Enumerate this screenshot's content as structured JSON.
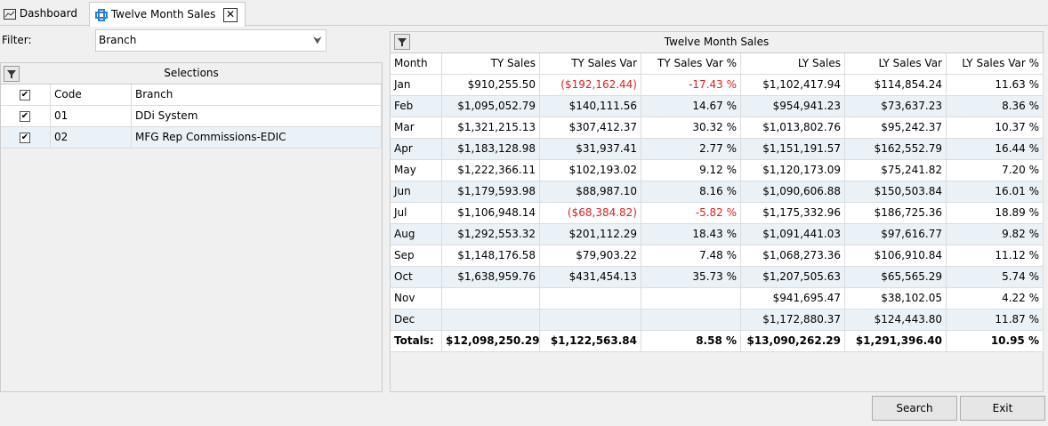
{
  "tabs": [
    "Dashboard",
    "Twelve Month Sales"
  ],
  "filter": {
    "label": "Filter:",
    "value": "Branch"
  },
  "selections": {
    "title": "Selections",
    "columns": [
      "Code",
      "Branch"
    ],
    "rows": [
      [
        "01",
        "DDi System"
      ],
      [
        "02",
        "MFG Rep Commissions-EDIC"
      ]
    ]
  },
  "sales": {
    "title": "Twelve Month Sales",
    "columns": [
      "Month",
      "TY Sales",
      "TY Sales Var",
      "TY Sales Var %",
      "LY Sales",
      "LY Sales Var",
      "LY Sales Var %"
    ],
    "rows": [
      [
        "Jan",
        "$910,255.50",
        "($192,162.44)",
        "-17.43 %",
        "$1,102,417.94",
        "$114,854.24",
        "11.63 %"
      ],
      [
        "Feb",
        "$1,095,052.79",
        "$140,111.56",
        "14.67 %",
        "$954,941.23",
        "$73,637.23",
        "8.36 %"
      ],
      [
        "Mar",
        "$1,321,215.13",
        "$307,412.37",
        "30.32 %",
        "$1,013,802.76",
        "$95,242.37",
        "10.37 %"
      ],
      [
        "Apr",
        "$1,183,128.98",
        "$31,937.41",
        "2.77 %",
        "$1,151,191.57",
        "$162,552.79",
        "16.44 %"
      ],
      [
        "May",
        "$1,222,366.11",
        "$102,193.02",
        "9.12 %",
        "$1,120,173.09",
        "$75,241.82",
        "7.20 %"
      ],
      [
        "Jun",
        "$1,179,593.98",
        "$88,987.10",
        "8.16 %",
        "$1,090,606.88",
        "$150,503.84",
        "16.01 %"
      ],
      [
        "Jul",
        "$1,106,948.14",
        "($68,384.82)",
        "-5.82 %",
        "$1,175,332.96",
        "$186,725.36",
        "18.89 %"
      ],
      [
        "Aug",
        "$1,292,553.32",
        "$201,112.29",
        "18.43 %",
        "$1,091,441.03",
        "$97,616.77",
        "9.82 %"
      ],
      [
        "Sep",
        "$1,148,176.58",
        "$79,903.22",
        "7.48 %",
        "$1,068,273.36",
        "$106,910.84",
        "11.12 %"
      ],
      [
        "Oct",
        "$1,638,959.76",
        "$431,454.13",
        "35.73 %",
        "$1,207,505.63",
        "$65,565.29",
        "5.74 %"
      ],
      [
        "Nov",
        null,
        null,
        null,
        "$941,695.47",
        "$38,102.05",
        "4.22 %"
      ],
      [
        "Dec",
        null,
        null,
        null,
        "$1,172,880.37",
        "$124,443.80",
        "11.87 %"
      ]
    ],
    "totals": [
      "Totals:",
      "$12,098,250.29",
      "$1,122,563.84",
      "8.58 %",
      "$13,090,262.29",
      "$1,291,396.40",
      "10.95 %"
    ]
  },
  "buttons": [
    "Search",
    "Exit"
  ]
}
